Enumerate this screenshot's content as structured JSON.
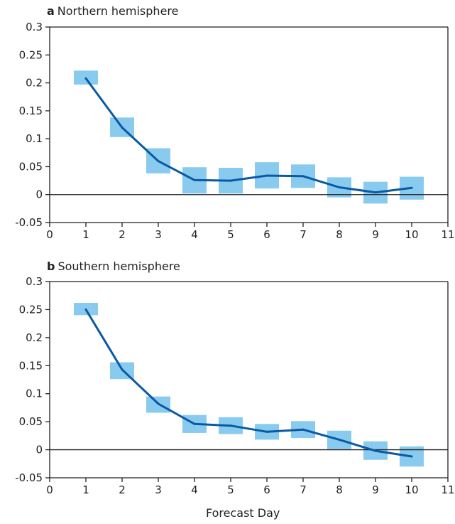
{
  "chart_data": [
    {
      "type": "line",
      "panel_letter": "a",
      "title": "Northern hemisphere",
      "xlabel": "",
      "ylabel": "",
      "xlim": [
        0,
        11
      ],
      "ylim": [
        -0.05,
        0.3
      ],
      "x_ticks": [
        "0",
        "1",
        "2",
        "3",
        "4",
        "5",
        "6",
        "7",
        "8",
        "9",
        "10",
        "11"
      ],
      "y_ticks": [
        "0.3",
        "0.25",
        "0.2",
        "0.15",
        "0.1",
        "0.05",
        "0",
        "-0.05"
      ],
      "x": [
        1,
        2,
        3,
        4,
        5,
        6,
        7,
        8,
        9,
        10
      ],
      "series": [
        {
          "values": [
            0.208,
            0.12,
            0.06,
            0.026,
            0.025,
            0.034,
            0.033,
            0.013,
            0.004,
            0.012
          ]
        }
      ],
      "ranges": [
        [
          0.197,
          0.222
        ],
        [
          0.103,
          0.138
        ],
        [
          0.038,
          0.083
        ],
        [
          0.002,
          0.049
        ],
        [
          0.002,
          0.048
        ],
        [
          0.011,
          0.058
        ],
        [
          0.012,
          0.054
        ],
        [
          -0.005,
          0.031
        ],
        [
          -0.016,
          0.023
        ],
        [
          -0.009,
          0.032
        ]
      ],
      "colors": {
        "line": "#0a5aa3",
        "range": "#89cbef",
        "axis": "#231f20"
      }
    },
    {
      "type": "line",
      "panel_letter": "b",
      "title": "Southern hemisphere",
      "xlabel": "Forecast Day",
      "ylabel": "",
      "xlim": [
        0,
        11
      ],
      "ylim": [
        -0.05,
        0.3
      ],
      "x_ticks": [
        "0",
        "1",
        "2",
        "3",
        "4",
        "5",
        "6",
        "7",
        "8",
        "9",
        "10",
        "11"
      ],
      "y_ticks": [
        "0.3",
        "0.25",
        "0.2",
        "0.15",
        "0.1",
        "0.05",
        "0",
        "-0.05"
      ],
      "x": [
        1,
        2,
        3,
        4,
        5,
        6,
        7,
        8,
        9,
        10
      ],
      "series": [
        {
          "values": [
            0.25,
            0.143,
            0.082,
            0.046,
            0.043,
            0.032,
            0.036,
            0.018,
            -0.002,
            -0.012
          ]
        }
      ],
      "ranges": [
        [
          0.24,
          0.262
        ],
        [
          0.126,
          0.156
        ],
        [
          0.066,
          0.095
        ],
        [
          0.03,
          0.062
        ],
        [
          0.028,
          0.058
        ],
        [
          0.018,
          0.046
        ],
        [
          0.021,
          0.051
        ],
        [
          0.001,
          0.034
        ],
        [
          -0.018,
          0.015
        ],
        [
          -0.03,
          0.006
        ]
      ],
      "colors": {
        "line": "#0a5aa3",
        "range": "#89cbef",
        "axis": "#231f20"
      }
    }
  ]
}
